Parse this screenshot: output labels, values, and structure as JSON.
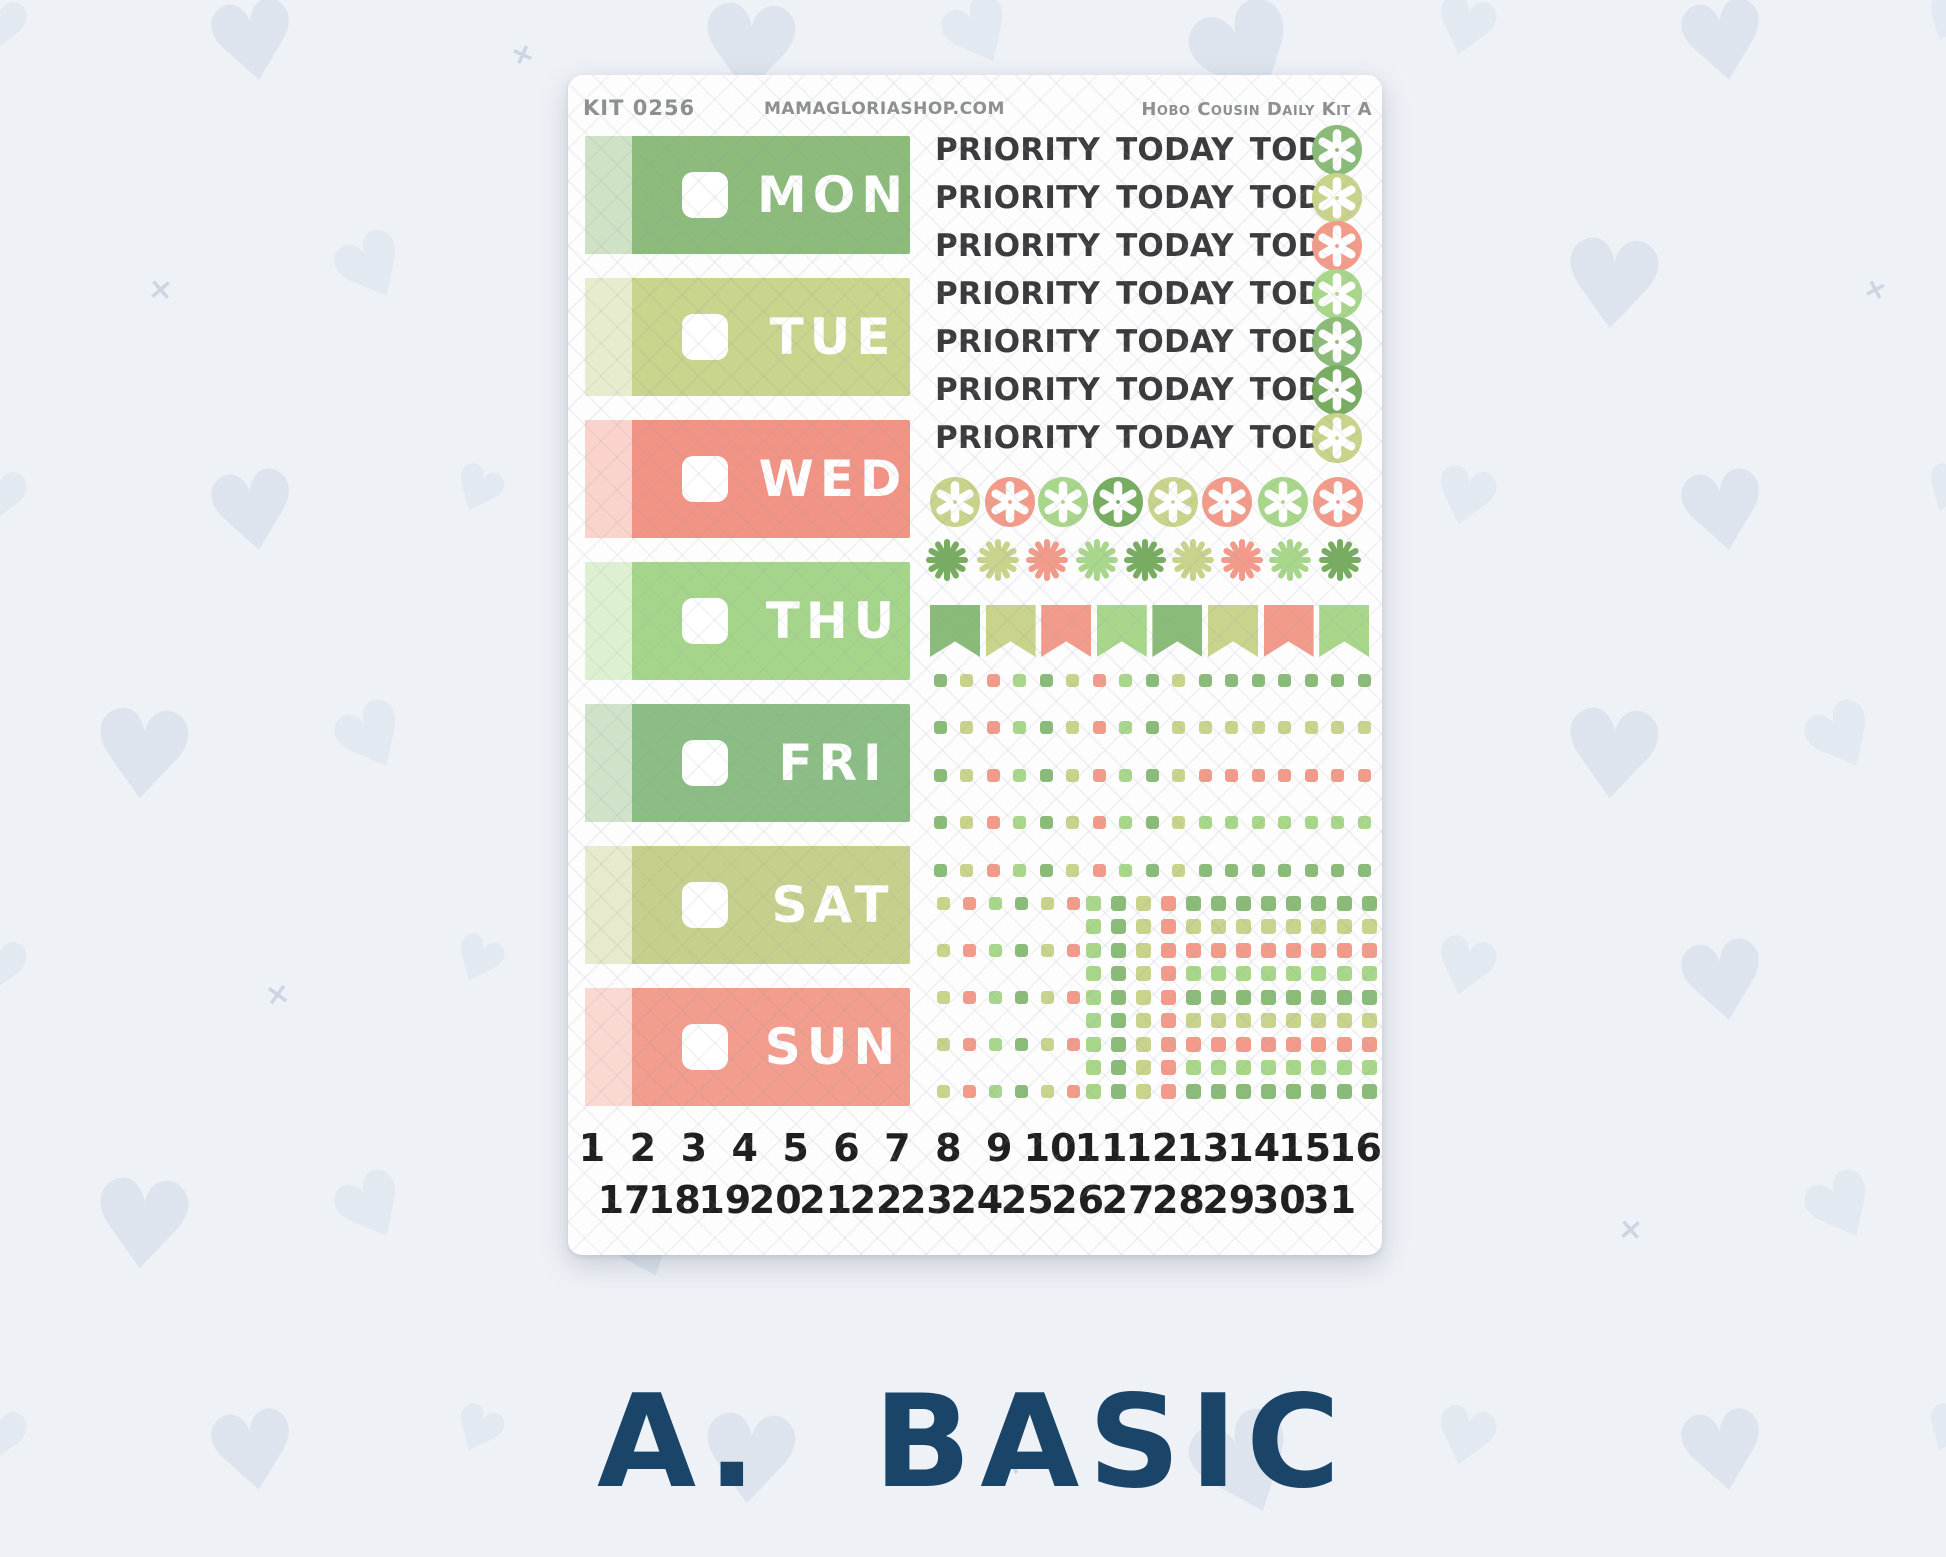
{
  "header": {
    "kit_code": "KIT 0256",
    "shop": "MAMAGLORIASHOP.COM",
    "kit_name": "Hobo Cousin Daily Kit A"
  },
  "palette": {
    "G": "#8bbb79",
    "D": "#78ac60",
    "O": "#c9d38c",
    "S": "#f29b8a",
    "L": "#a8d68b"
  },
  "background": {
    "canvas": "#eef1f6",
    "heart_colors": [
      "#dde4ee",
      "#e3e9f1"
    ],
    "mark_color": "#ccd6e2"
  },
  "days": [
    {
      "label": "MON",
      "fill": "#8cbb7c",
      "strip": "#cfe2c6"
    },
    {
      "label": "TUE",
      "fill": "#c9d48c",
      "strip": "#e8ecce"
    },
    {
      "label": "WED",
      "fill": "#f19486",
      "strip": "#f9d3cc"
    },
    {
      "label": "THU",
      "fill": "#a5d58a",
      "strip": "#def0d2"
    },
    {
      "label": "FRI",
      "fill": "#8cbd85",
      "strip": "#d0e3ca"
    },
    {
      "label": "SAT",
      "fill": "#c6d08c",
      "strip": "#e7eacd"
    },
    {
      "label": "SUN",
      "fill": "#f29d8d",
      "strip": "#fad9d3"
    }
  ],
  "priority": {
    "label": "PRIORITY TODAY TODO",
    "circles": [
      "G",
      "O",
      "S",
      "L",
      "G",
      "D",
      "O"
    ]
  },
  "asterisk_circle_row": [
    "O",
    "S",
    "L",
    "D",
    "O",
    "S",
    "L",
    "S"
  ],
  "starburst_row": [
    "D",
    "O",
    "S",
    "L",
    "D",
    "O",
    "S",
    "L",
    "D"
  ],
  "flag_row": [
    "G",
    "O",
    "S",
    "L",
    "G",
    "O",
    "S",
    "L"
  ],
  "dot_grid_top": {
    "rows": [
      "GOSLGOSLGOGGGGGGG",
      "GOSLGOSLGOOOOOOOO",
      "GOSLGOSLGOSSSSSSS",
      "GOSLGOSLGOLLLLLLL",
      "GOSLGOSLGOGGGGGGG"
    ]
  },
  "dot_grid_bottom": {
    "left_rows": [
      "OSLGOS",
      "OSLGOS",
      "OSLGOS",
      "OSLGOS",
      "OSLGOS"
    ],
    "right_rows": [
      "LGOSGGGGGGGG",
      "LGOSOOOOOOOO",
      "LGOSSSSSSSSS",
      "LGOSLLLLLLLL",
      "LGOSGGGGGGGG",
      "LGOSOOOOOOOO",
      "LGOSSSSSSSSS",
      "LGOSLLLLLLLL",
      "LGOSGGGGGGGG"
    ]
  },
  "date_row_1": [
    "1",
    "2",
    "3",
    "4",
    "5",
    "6",
    "7",
    "8",
    "9",
    "10",
    "11",
    "12",
    "13",
    "14",
    "15",
    "16"
  ],
  "date_row_2": [
    "17",
    "18",
    "19",
    "20",
    "21",
    "22",
    "23",
    "24",
    "25",
    "26",
    "27",
    "28",
    "29",
    "30",
    "31"
  ],
  "footer_label": "A. BASIC"
}
